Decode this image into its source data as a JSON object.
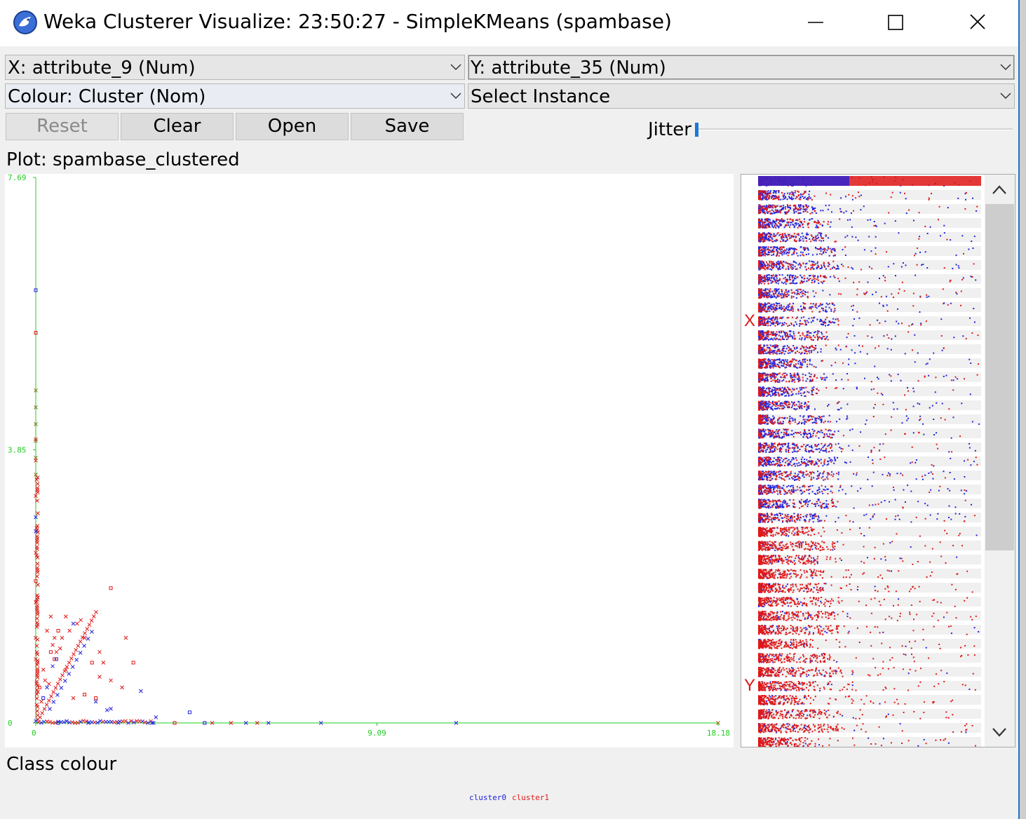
{
  "window": {
    "title": "Weka Clusterer Visualize: 23:50:27 - SimpleKMeans (spambase)",
    "controls": [
      "minimize-icon",
      "maximize-icon",
      "close-icon"
    ]
  },
  "controls": {
    "x_axis": "X: attribute_9 (Num)",
    "y_axis": "Y: attribute_35 (Num)",
    "colour": "Colour: Cluster (Nom)",
    "select_instance": "Select Instance"
  },
  "buttons": {
    "reset": "Reset",
    "clear": "Clear",
    "open": "Open",
    "save": "Save"
  },
  "jitter": {
    "label": "Jitter",
    "value": 0
  },
  "plot": {
    "label": "Plot: spambase_clustered"
  },
  "chart_data": {
    "type": "scatter",
    "x_ticks": [
      "0",
      "9.09",
      "18.18"
    ],
    "y_ticks": [
      "0",
      "3.85",
      "7.69"
    ],
    "xlim": [
      0,
      18.18
    ],
    "ylim": [
      0,
      7.69
    ],
    "axis_color": "#22cc22",
    "series": [
      {
        "name": "cluster0",
        "color": "#2323dd",
        "points": [
          [
            0,
            6.1
          ],
          [
            0,
            2.9
          ],
          [
            0,
            2.7
          ],
          [
            1.0,
            1.4
          ],
          [
            0.55,
            0.9
          ],
          [
            0.45,
            0.8
          ],
          [
            2.8,
            0.45
          ],
          [
            1.6,
            0.3
          ],
          [
            4.1,
            0.15
          ],
          [
            2.0,
            0.2
          ],
          [
            7.6,
            0
          ],
          [
            11.2,
            0
          ],
          [
            4.5,
            0
          ],
          [
            3.1,
            0
          ],
          [
            2.2,
            0
          ],
          [
            1.4,
            0
          ],
          [
            0.6,
            0
          ],
          [
            5.6,
            0
          ],
          [
            6.2,
            0
          ],
          [
            0.3,
            0.5
          ],
          [
            0.2,
            0.35
          ],
          [
            1.9,
            0.18
          ],
          [
            3.2,
            0.08
          ]
        ]
      },
      {
        "name": "cluster1",
        "color": "#e01818",
        "points": [
          [
            0,
            5.5
          ],
          [
            0,
            4.0
          ],
          [
            0,
            3.7
          ],
          [
            0,
            3.2
          ],
          [
            2.0,
            1.9
          ],
          [
            0.4,
            1.5
          ],
          [
            0.8,
            1.5
          ],
          [
            0.5,
            1.2
          ],
          [
            0.6,
            1.3
          ],
          [
            0.9,
            1.3
          ],
          [
            0.7,
            1.2
          ],
          [
            1.3,
            1.2
          ],
          [
            2.6,
            0.85
          ],
          [
            2.3,
            0.5
          ],
          [
            2.0,
            0.6
          ],
          [
            1.7,
            0.65
          ],
          [
            1.6,
            0.35
          ],
          [
            0.3,
            1.3
          ],
          [
            0.45,
            1.1
          ],
          [
            0.55,
            1.0
          ],
          [
            0.4,
            1.0
          ],
          [
            1.1,
            1.4
          ],
          [
            1.2,
            1.45
          ],
          [
            1.7,
            1.0
          ],
          [
            1.5,
            0.85
          ],
          [
            1.8,
            0.85
          ],
          [
            2.4,
            1.2
          ],
          [
            0.2,
            0.75
          ],
          [
            1.3,
            0.4
          ],
          [
            1.0,
            0.35
          ],
          [
            0.25,
            0.6
          ],
          [
            0.35,
            0.55
          ],
          [
            3.7,
            0
          ],
          [
            4.7,
            0
          ],
          [
            5.2,
            0
          ],
          [
            5.9,
            0
          ],
          [
            0.5,
            0.9
          ],
          [
            0.65,
            1.05
          ],
          [
            0.8,
            0.75
          ],
          [
            0,
            2.4
          ],
          [
            0,
            2.0
          ],
          [
            0,
            1.7
          ],
          [
            0,
            1.2
          ],
          [
            0,
            0.9
          ],
          [
            0.1,
            0.5
          ],
          [
            0.15,
            0.3
          ]
        ]
      }
    ],
    "legend": [
      "cluster0",
      "cluster1"
    ]
  },
  "attribute_panel": {
    "x_marker": "X",
    "y_marker": "Y",
    "strips": 41
  },
  "class_colour": {
    "label": "Class colour",
    "entries": [
      {
        "name": "cluster0",
        "color": "#2323dd"
      },
      {
        "name": "cluster1",
        "color": "#e01818"
      }
    ]
  }
}
